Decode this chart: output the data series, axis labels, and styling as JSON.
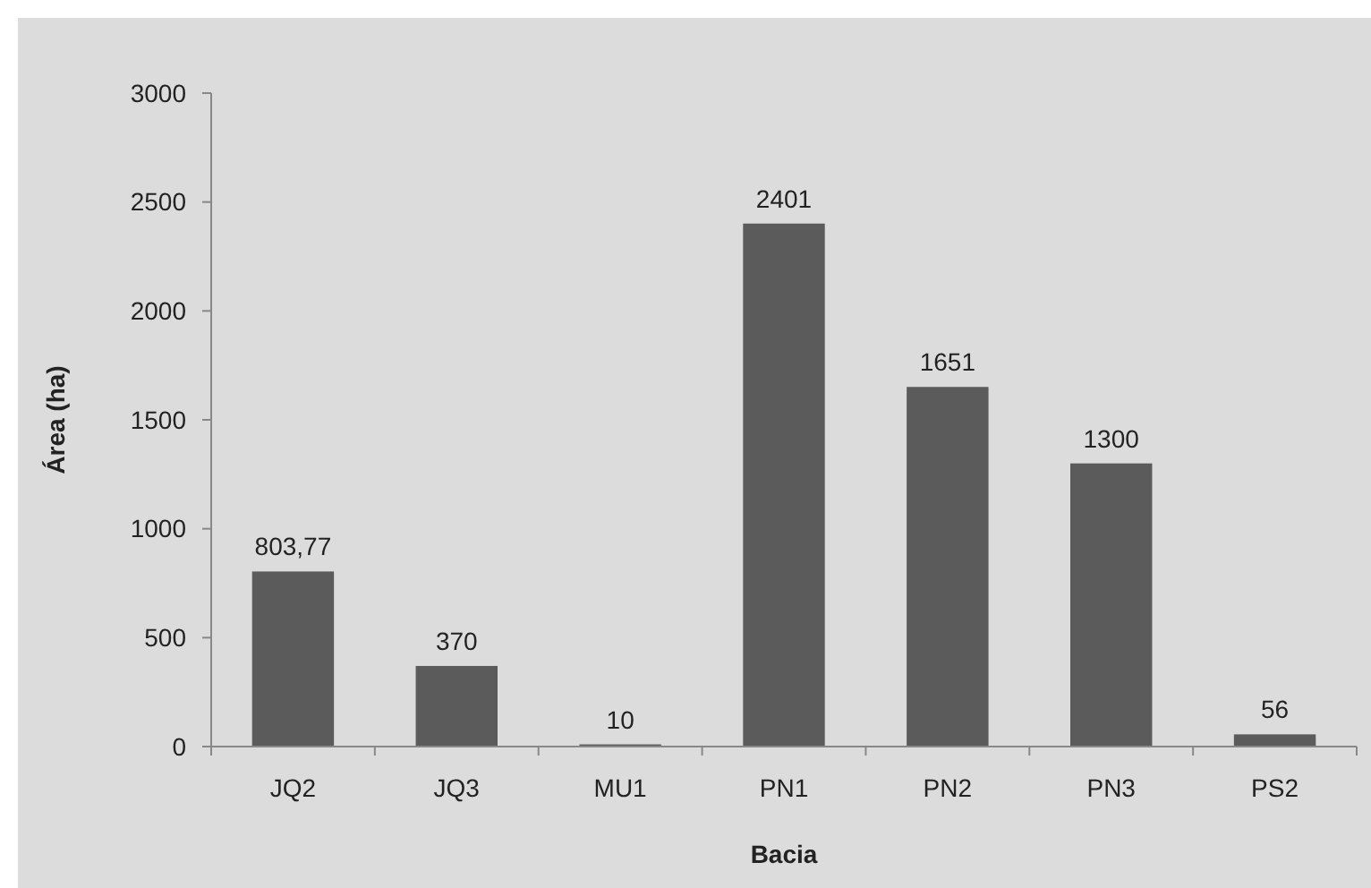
{
  "chart_data": {
    "type": "bar",
    "xlabel": "Bacia",
    "ylabel": "Área (ha)",
    "categories": [
      "JQ2",
      "JQ3",
      "MU1",
      "PN1",
      "PN2",
      "PN3",
      "PS2"
    ],
    "values": [
      803.77,
      370,
      10,
      2401,
      1651,
      1300,
      56
    ],
    "value_labels": [
      "803,77",
      "370",
      "10",
      "2401",
      "1651",
      "1300",
      "56"
    ],
    "color": "#5b5b5b",
    "ylim": [
      0,
      3000
    ],
    "yticks": [
      0,
      500,
      1000,
      1500,
      2000,
      2500,
      3000
    ],
    "grid": false
  }
}
